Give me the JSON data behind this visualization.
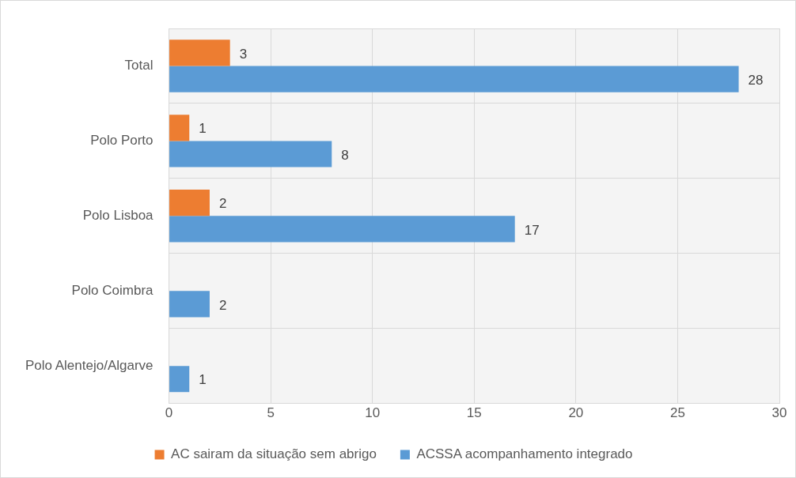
{
  "chart_data": {
    "type": "bar",
    "orientation": "horizontal",
    "categories": [
      "Total",
      "Polo Porto",
      "Polo Lisboa",
      "Polo Coimbra",
      "Polo Alentejo/Algarve"
    ],
    "series": [
      {
        "name": "AC sairam da situação sem abrigo",
        "color": "#ed7d31",
        "values": [
          3,
          1,
          2,
          null,
          null
        ]
      },
      {
        "name": "ACSSA acompanhamento integrado",
        "color": "#5b9bd5",
        "values": [
          28,
          8,
          17,
          2,
          1
        ]
      }
    ],
    "xlim": [
      0,
      30
    ],
    "xticks": [
      0,
      5,
      10,
      15,
      20,
      25,
      30
    ],
    "grid": true,
    "legend": "bottom",
    "data_labels": true
  }
}
